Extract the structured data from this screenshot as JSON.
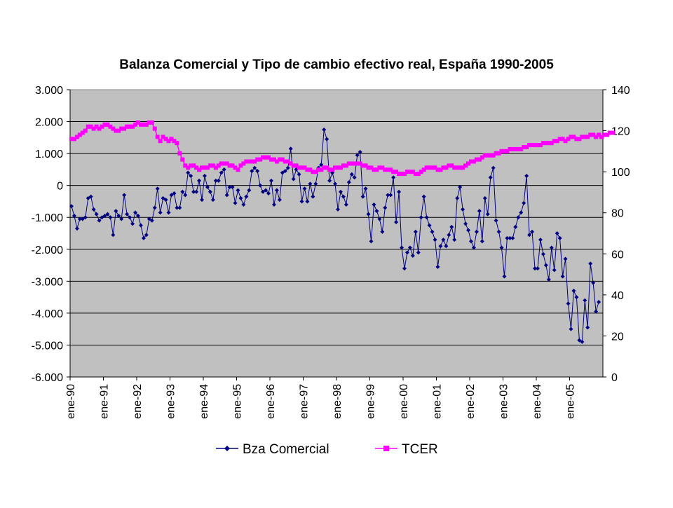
{
  "chart_data": {
    "type": "line",
    "title": "Balanza Comercial y Tipo de cambio efectivo real, España 1990-2005",
    "xlabel": "",
    "ylabel": "",
    "y2label": "",
    "x_tick_labels": [
      "ene-90",
      "ene-91",
      "ene-92",
      "ene-93",
      "ene-94",
      "ene-95",
      "ene-96",
      "ene-97",
      "ene-98",
      "ene-99",
      "ene-00",
      "ene-01",
      "ene-02",
      "ene-03",
      "ene-04",
      "ene-05"
    ],
    "ylim": [
      -6000,
      3000
    ],
    "y_ticks": [
      3000,
      2000,
      1000,
      0,
      -1000,
      -2000,
      -3000,
      -4000,
      -5000,
      -6000
    ],
    "y_tick_labels": [
      "3.000",
      "2.000",
      "1.000",
      "0",
      "-1.000",
      "-2.000",
      "-3.000",
      "-4.000",
      "-5.000",
      "-6.000"
    ],
    "y2lim": [
      0,
      140
    ],
    "y2_ticks": [
      140,
      120,
      100,
      80,
      60,
      40,
      20,
      0
    ],
    "y2_tick_labels": [
      "140",
      "120",
      "100",
      "80",
      "60",
      "40",
      "20",
      "0"
    ],
    "grid": "horizontal",
    "legend_position": "bottom",
    "plot_background": "#c0c0c0",
    "series": [
      {
        "name": "Bza Comercial",
        "axis": "left",
        "color": "#000080",
        "marker": "diamond",
        "values": [
          -650,
          -950,
          -1350,
          -1050,
          -1050,
          -1000,
          -400,
          -350,
          -750,
          -900,
          -1100,
          -1000,
          -950,
          -900,
          -1000,
          -1550,
          -800,
          -950,
          -1050,
          -300,
          -900,
          -1000,
          -1200,
          -850,
          -950,
          -1250,
          -1650,
          -1550,
          -1050,
          -1100,
          -700,
          -100,
          -850,
          -400,
          -450,
          -850,
          -300,
          -250,
          -700,
          -700,
          -200,
          -300,
          400,
          300,
          -200,
          -200,
          150,
          -450,
          300,
          -50,
          -200,
          -450,
          150,
          150,
          400,
          500,
          -300,
          -50,
          -50,
          -550,
          -150,
          -400,
          -600,
          -350,
          -150,
          450,
          550,
          450,
          0,
          -200,
          -150,
          -250,
          150,
          -600,
          -150,
          -450,
          400,
          450,
          550,
          1150,
          200,
          500,
          350,
          -500,
          -100,
          -500,
          50,
          -350,
          50,
          550,
          650,
          1750,
          1450,
          150,
          400,
          50,
          -750,
          -200,
          -350,
          -600,
          100,
          350,
          250,
          950,
          1050,
          -350,
          -100,
          -900,
          -1750,
          -600,
          -800,
          -1050,
          -1450,
          -700,
          -300,
          -300,
          250,
          -1150,
          -200,
          -1950,
          -2600,
          -2100,
          -1950,
          -2200,
          -1450,
          -2100,
          -1000,
          -350,
          -1000,
          -1250,
          -1450,
          -1700,
          -2550,
          -1900,
          -1700,
          -1900,
          -1550,
          -1300,
          -1700,
          -400,
          -50,
          -750,
          -1200,
          -1400,
          -1750,
          -1950,
          -1450,
          -800,
          -1750,
          -400,
          -900,
          250,
          550,
          -1100,
          -1450,
          -1950,
          -2850,
          -1650,
          -1650,
          -1650,
          -1300,
          -1000,
          -850,
          -550,
          300,
          -1550,
          -1450,
          -2600,
          -2600,
          -1700,
          -2150,
          -2500,
          -2950,
          -1950,
          -2650,
          -1500,
          -1650,
          -2850,
          -2300,
          -3700,
          -4500,
          -3300,
          -3500,
          -4850,
          -4900,
          -3600,
          -4450,
          -2450,
          -3050,
          -3950,
          -3650
        ],
        "last_marker_visible": true
      },
      {
        "name": "TCER",
        "axis": "right",
        "color": "#ff00ff",
        "marker": "square",
        "values": [
          116,
          116,
          117,
          118,
          119,
          120,
          122,
          122,
          121,
          122,
          121,
          122,
          123,
          123,
          122,
          121,
          120,
          120,
          121,
          121,
          122,
          122,
          122,
          123,
          124,
          123,
          123,
          123,
          124,
          124,
          121,
          117,
          115,
          117,
          116,
          115,
          116,
          115,
          114,
          109,
          106,
          103,
          102,
          103,
          103,
          102,
          101,
          102,
          102,
          102,
          103,
          103,
          102,
          103,
          104,
          104,
          104,
          103,
          103,
          102,
          101,
          103,
          104,
          105,
          105,
          105,
          105,
          106,
          106,
          107,
          107,
          107,
          106,
          106,
          105,
          106,
          106,
          105,
          105,
          104,
          103,
          103,
          102,
          102,
          102,
          101,
          101,
          100,
          100,
          101,
          101,
          102,
          102,
          101,
          101,
          102,
          102,
          102,
          103,
          103,
          104,
          104,
          104,
          104,
          104,
          103,
          103,
          102,
          102,
          101,
          101,
          102,
          102,
          101,
          101,
          101,
          100,
          100,
          99,
          99,
          99,
          100,
          100,
          100,
          99,
          99,
          100,
          101,
          102,
          102,
          102,
          102,
          101,
          101,
          102,
          102,
          103,
          103,
          102,
          102,
          102,
          102,
          103,
          104,
          105,
          105,
          106,
          106,
          107,
          108,
          108,
          108,
          108,
          109,
          109,
          110,
          110,
          110,
          111,
          111,
          111,
          111,
          111,
          112,
          112,
          113,
          113,
          113,
          113,
          113,
          114,
          114,
          114,
          114,
          115,
          115,
          116,
          116,
          115,
          116,
          117,
          117,
          116,
          116,
          117,
          117,
          117,
          118,
          118,
          117,
          118,
          117,
          118,
          118,
          119,
          119
        ]
      }
    ]
  }
}
